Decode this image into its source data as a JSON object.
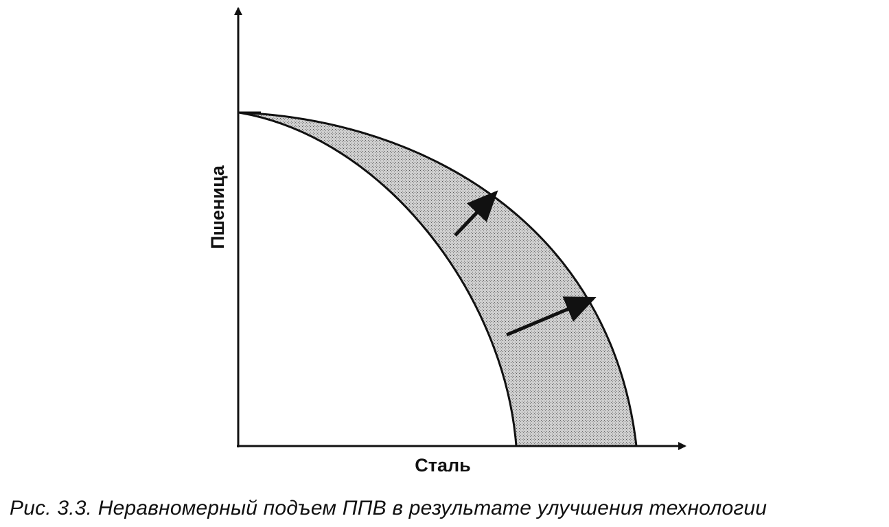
{
  "diagram": {
    "y_axis_label": "Пшеница",
    "x_axis_label": "Сталь",
    "regions": [
      "original-ppf",
      "shifted-ppf",
      "shaded-gain-area"
    ],
    "arrows": [
      "upper-shift-arrow",
      "lower-shift-arrow"
    ],
    "colors": {
      "ink": "#111111",
      "shade": "#bdbdbd",
      "background": "#ffffff"
    }
  },
  "caption": "Рис. 3.3. Неравномерный подъем ППВ в результате улучшения технологии"
}
